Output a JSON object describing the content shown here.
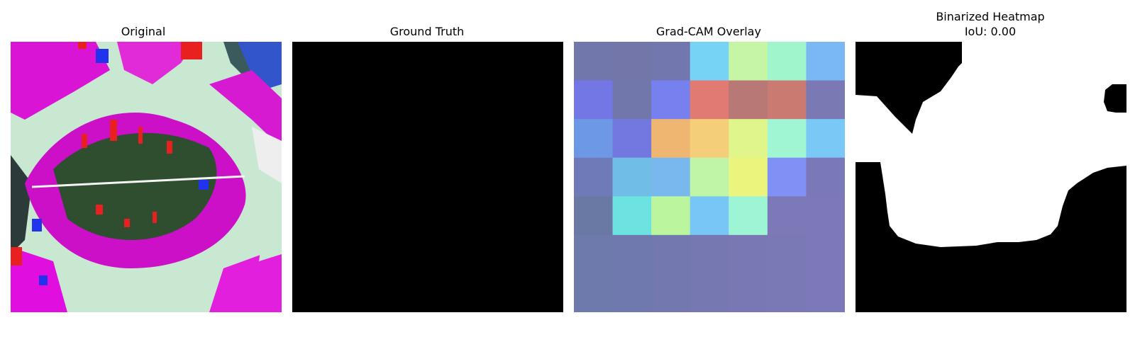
{
  "panels": [
    {
      "title": "Original",
      "subtitle": ""
    },
    {
      "title": "Ground Truth",
      "subtitle": ""
    },
    {
      "title": "Grad-CAM Overlay",
      "subtitle": ""
    },
    {
      "title": "Binarized Heatmap",
      "subtitle": "IoU: 0.00"
    }
  ],
  "heatmap": {
    "grid": [
      [
        "#7277ab",
        "#7276a8",
        "#7277ae",
        "#75d3f5",
        "#c6f5a5",
        "#a0f5cd",
        "#7ab8f5"
      ],
      [
        "#7377e6",
        "#7277ab",
        "#7680ef",
        "#e07a72",
        "#b87876",
        "#cb7a72",
        "#7a79b3"
      ],
      [
        "#6c98e6",
        "#7378e0",
        "#efb672",
        "#f5ce7a",
        "#e0f58a",
        "#a0f5d3",
        "#79c8f5"
      ],
      [
        "#6f7bb8",
        "#70bde8",
        "#78b8ef",
        "#c0f5a8",
        "#ebf57d",
        "#8190f5",
        "#7b78b8"
      ],
      [
        "#6979a3",
        "#6ce3e0",
        "#bbf59d",
        "#77c6f5",
        "#9ef5d5",
        "#7d78b8",
        "#7d78b8"
      ],
      [
        "#6d7aab",
        "#7079ad",
        "#7379af",
        "#7678b2",
        "#7978b4",
        "#7b78b6",
        "#7d78b8"
      ],
      [
        "#6d7aab",
        "#7079ad",
        "#7379af",
        "#7678b2",
        "#7978b4",
        "#7b78b6",
        "#7d78b8"
      ]
    ]
  }
}
